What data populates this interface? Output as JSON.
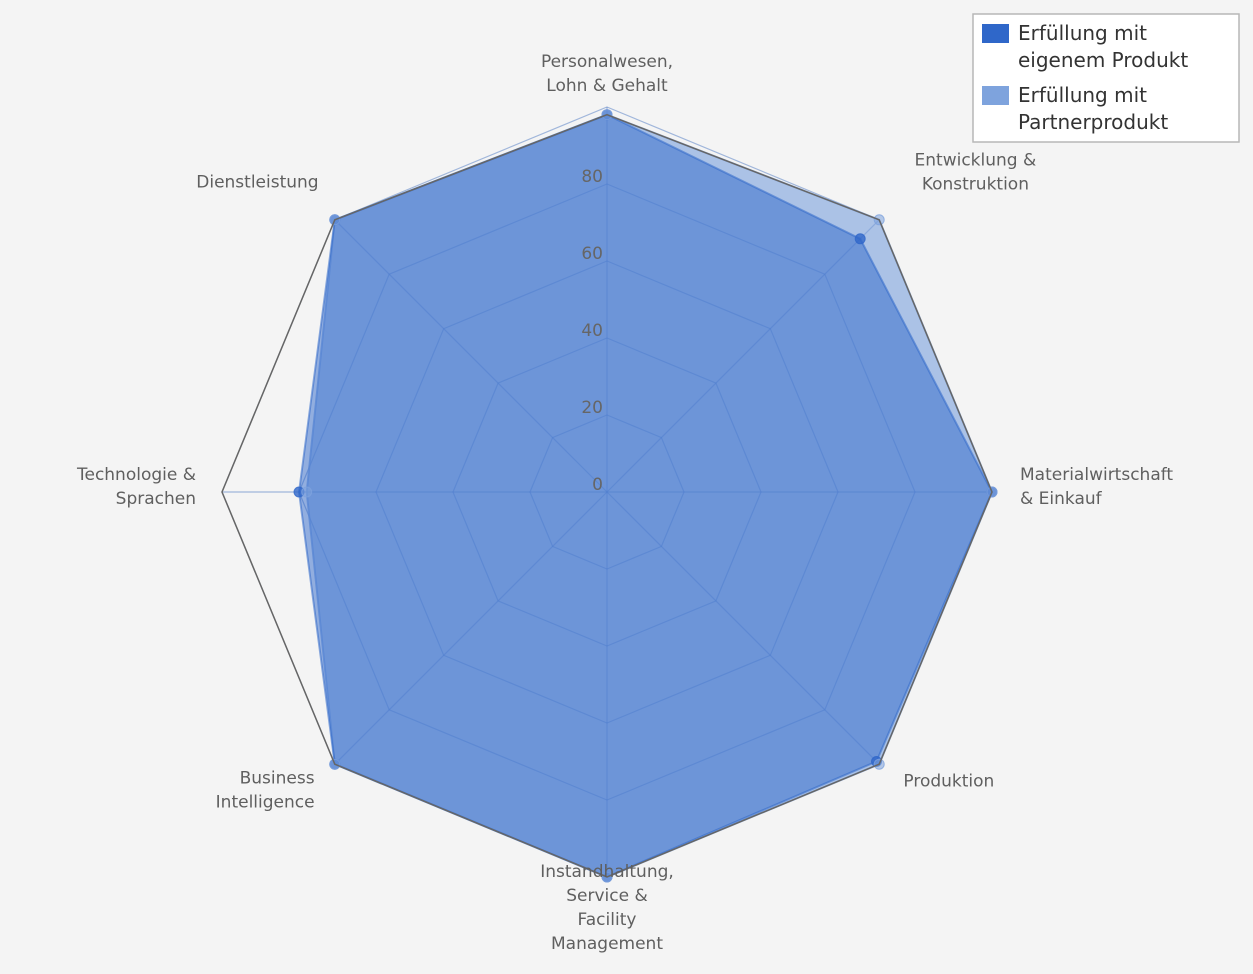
{
  "chart_data": {
    "type": "radar",
    "axes": [
      "Personalwesen,\nLohn & Gehalt",
      "Entwicklung &\nKonstruktion",
      "Materialwirtschaft\n& Einkauf",
      "Produktion",
      "Instandhaltung,\nService &\nFacility\nManagement",
      "Business\nIntelligence",
      "Technologie &\nSprachen",
      "Dienstleistung"
    ],
    "rlim": [
      0,
      100
    ],
    "ticks": [
      0,
      20,
      40,
      60,
      80
    ],
    "series": [
      {
        "name": "Erfüllung mit eigenem Produkt",
        "color": "#2f67c9",
        "values": [
          98,
          93,
          100,
          99,
          100,
          100,
          80,
          100
        ]
      },
      {
        "name": "Erfüllung mit Partnerprodukt",
        "color": "#7ea3dd",
        "values": [
          98,
          100,
          100,
          100,
          100,
          100,
          78,
          100
        ]
      }
    ],
    "outline_values": [
      98,
      100,
      100,
      100,
      100,
      100,
      100,
      100
    ],
    "grid": true,
    "legend_position": "top-right",
    "title": "",
    "xlabel": "",
    "ylabel": ""
  }
}
